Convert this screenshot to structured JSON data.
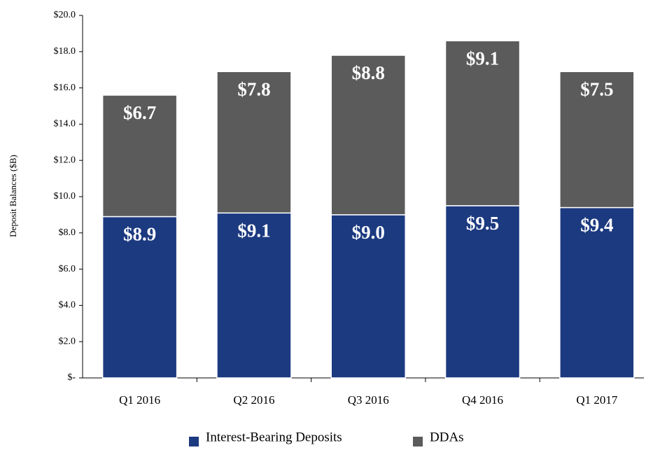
{
  "chart_data": {
    "type": "bar",
    "stacked": true,
    "y_label": "Deposit Balances ($B)",
    "categories": [
      "Q1 2016",
      "Q2 2016",
      "Q3 2016",
      "Q4 2016",
      "Q1 2017"
    ],
    "series": [
      {
        "name": "Interest-Bearing Deposits",
        "color": "#1c3a80",
        "values": [
          8.9,
          9.1,
          9.0,
          9.5,
          9.4
        ],
        "value_labels": [
          "$8.9",
          "$9.1",
          "$9.0",
          "$9.5",
          "$9.4"
        ]
      },
      {
        "name": "DDAs",
        "color": "#5a5b5a",
        "values": [
          6.7,
          7.8,
          8.8,
          9.1,
          7.5
        ],
        "value_labels": [
          "$6.7",
          "$7.8",
          "$8.8",
          "$9.1",
          "$7.5"
        ]
      }
    ],
    "ylim": [
      0,
      20
    ],
    "yticks": [
      {
        "value": 0,
        "label": "$-"
      },
      {
        "value": 2,
        "label": "$2.0"
      },
      {
        "value": 4,
        "label": "$4.0"
      },
      {
        "value": 6,
        "label": "$6.0"
      },
      {
        "value": 8,
        "label": "$8.0"
      },
      {
        "value": 10,
        "label": "$10.0"
      },
      {
        "value": 12,
        "label": "$12.0"
      },
      {
        "value": 14,
        "label": "$14.0"
      },
      {
        "value": 16,
        "label": "$16.0"
      },
      {
        "value": 18,
        "label": "$18.0"
      },
      {
        "value": 20,
        "label": "$20.0"
      }
    ],
    "legend": "bottom"
  }
}
